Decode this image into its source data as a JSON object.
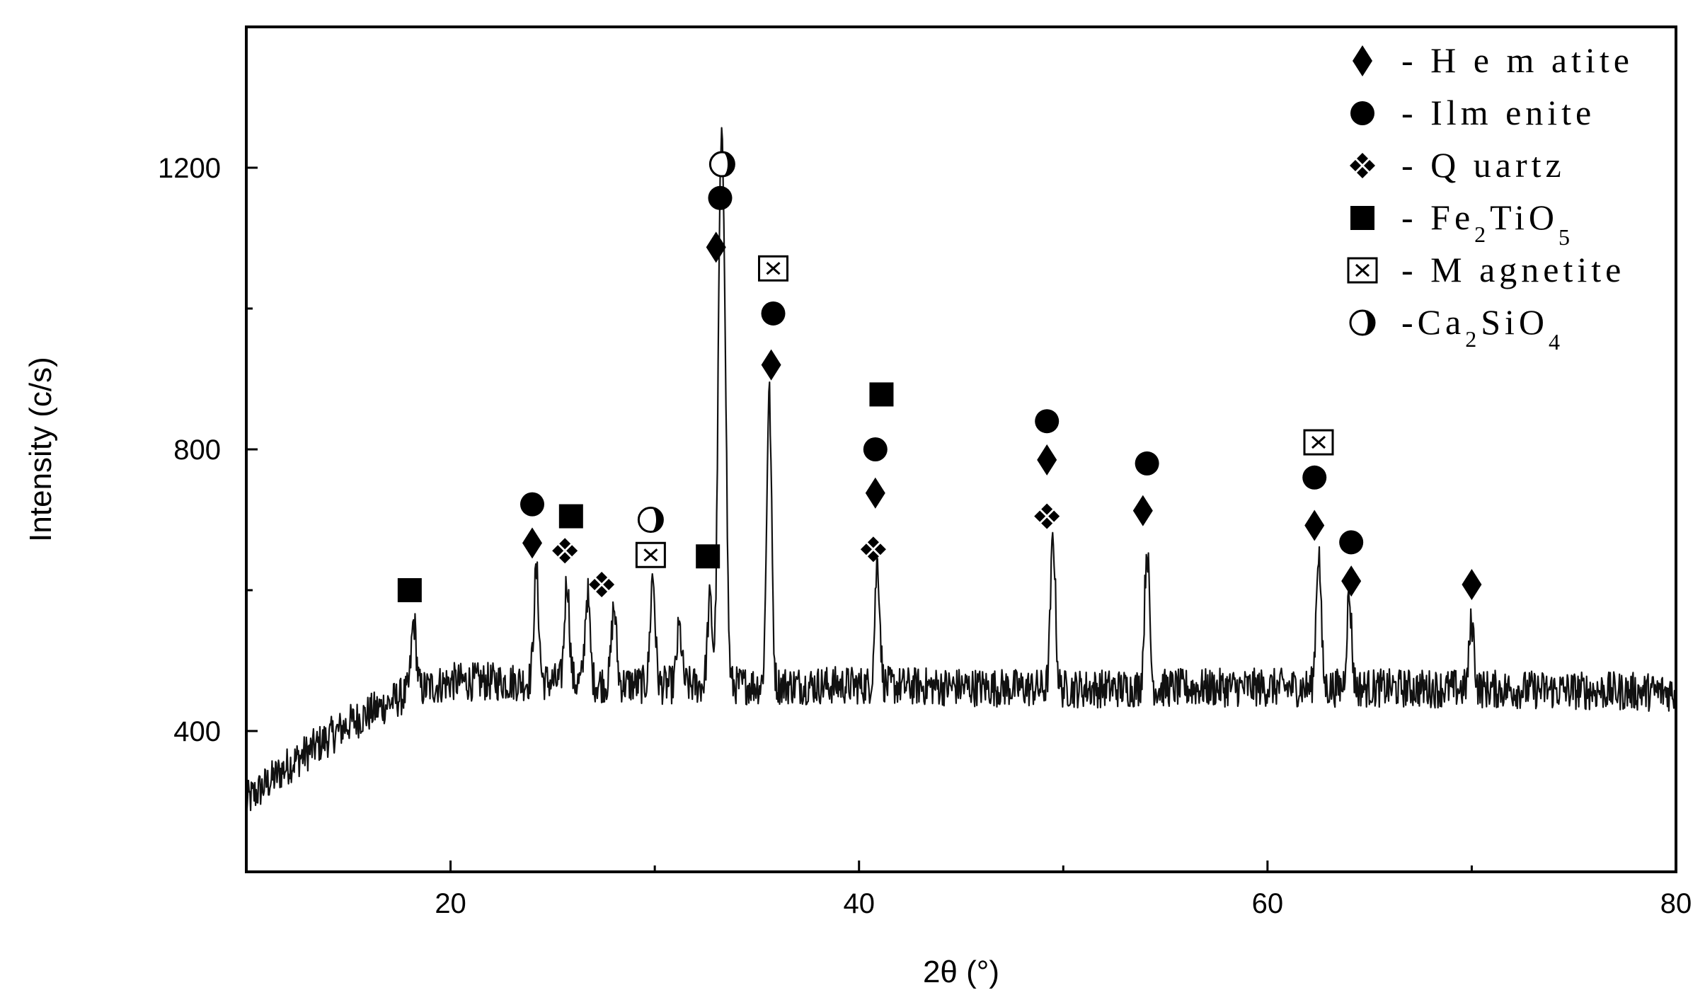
{
  "chart_data": {
    "type": "line",
    "title": "",
    "xlabel": "2θ (°)",
    "ylabel": "Intensity (c/s)",
    "xlim": [
      10,
      80
    ],
    "ylim": [
      200,
      1400
    ],
    "xticks": [
      20,
      40,
      60,
      80
    ],
    "yticks": [
      400,
      800,
      1200
    ],
    "grid": false,
    "legend_placement": "top-right",
    "series": [
      {
        "background": [
          [
            10,
            300
          ],
          [
            12,
            350
          ],
          [
            15,
            410
          ],
          [
            18,
            455
          ],
          [
            20,
            470
          ],
          [
            25,
            470
          ],
          [
            30,
            465
          ],
          [
            40,
            465
          ],
          [
            50,
            460
          ],
          [
            60,
            462
          ],
          [
            70,
            460
          ],
          [
            80,
            455
          ]
        ],
        "peaks": [
          {
            "x": 18.2,
            "y": 555
          },
          {
            "x": 24.2,
            "y": 625
          },
          {
            "x": 25.7,
            "y": 615
          },
          {
            "x": 26.7,
            "y": 595
          },
          {
            "x": 28.0,
            "y": 575
          },
          {
            "x": 29.9,
            "y": 620
          },
          {
            "x": 31.2,
            "y": 545
          },
          {
            "x": 32.7,
            "y": 585
          },
          {
            "x": 33.2,
            "y": 1050
          },
          {
            "x": 33.4,
            "y": 955
          },
          {
            "x": 35.6,
            "y": 880
          },
          {
            "x": 40.9,
            "y": 640
          },
          {
            "x": 49.5,
            "y": 675
          },
          {
            "x": 54.1,
            "y": 660
          },
          {
            "x": 62.5,
            "y": 655
          },
          {
            "x": 64.0,
            "y": 590
          },
          {
            "x": 70.0,
            "y": 555
          }
        ]
      }
    ],
    "phases": [
      {
        "key": "hematite",
        "label": "- H e m atite",
        "marker": "diamond"
      },
      {
        "key": "ilmenite",
        "label": "- Ilm enite",
        "marker": "circle"
      },
      {
        "key": "quartz",
        "label": "- Q uartz",
        "marker": "four-diamond"
      },
      {
        "key": "fe2tio5",
        "label": "- Fe",
        "label_sub1": "2",
        "label_mid": "TiO",
        "label_sub2": "5",
        "marker": "filled-square"
      },
      {
        "key": "magnetite",
        "label": "- M agnetite",
        "marker": "crossed-square"
      },
      {
        "key": "ca2sio4",
        "label": "-Ca",
        "label_sub1": "2",
        "label_mid": "SiO",
        "label_sub2": "4",
        "marker": "half-circle"
      }
    ],
    "annotations": [
      {
        "x": 18.0,
        "y": 600,
        "marker": "filled-square"
      },
      {
        "x": 24.0,
        "y": 667,
        "marker": "diamond"
      },
      {
        "x": 24.0,
        "y": 722,
        "marker": "circle"
      },
      {
        "x": 25.6,
        "y": 656,
        "marker": "four-diamond"
      },
      {
        "x": 25.9,
        "y": 705,
        "marker": "filled-square"
      },
      {
        "x": 27.4,
        "y": 608,
        "marker": "four-diamond"
      },
      {
        "x": 29.8,
        "y": 650,
        "marker": "crossed-square"
      },
      {
        "x": 29.8,
        "y": 700,
        "marker": "half-circle"
      },
      {
        "x": 32.6,
        "y": 648,
        "marker": "filled-square"
      },
      {
        "x": 33.0,
        "y": 1087,
        "marker": "diamond"
      },
      {
        "x": 33.2,
        "y": 1157,
        "marker": "circle"
      },
      {
        "x": 33.3,
        "y": 1205,
        "marker": "half-circle"
      },
      {
        "x": 35.7,
        "y": 920,
        "marker": "diamond"
      },
      {
        "x": 35.8,
        "y": 993,
        "marker": "circle"
      },
      {
        "x": 35.8,
        "y": 1057,
        "marker": "crossed-square"
      },
      {
        "x": 40.7,
        "y": 658,
        "marker": "four-diamond"
      },
      {
        "x": 40.8,
        "y": 738,
        "marker": "diamond"
      },
      {
        "x": 40.8,
        "y": 800,
        "marker": "circle"
      },
      {
        "x": 41.1,
        "y": 878,
        "marker": "filled-square"
      },
      {
        "x": 49.2,
        "y": 705,
        "marker": "four-diamond"
      },
      {
        "x": 49.2,
        "y": 785,
        "marker": "diamond"
      },
      {
        "x": 49.2,
        "y": 840,
        "marker": "circle"
      },
      {
        "x": 53.9,
        "y": 713,
        "marker": "diamond"
      },
      {
        "x": 54.1,
        "y": 780,
        "marker": "circle"
      },
      {
        "x": 62.3,
        "y": 692,
        "marker": "diamond"
      },
      {
        "x": 62.3,
        "y": 760,
        "marker": "circle"
      },
      {
        "x": 62.5,
        "y": 810,
        "marker": "crossed-square"
      },
      {
        "x": 64.1,
        "y": 613,
        "marker": "diamond"
      },
      {
        "x": 64.1,
        "y": 668,
        "marker": "circle"
      },
      {
        "x": 70.0,
        "y": 608,
        "marker": "diamond"
      }
    ]
  }
}
